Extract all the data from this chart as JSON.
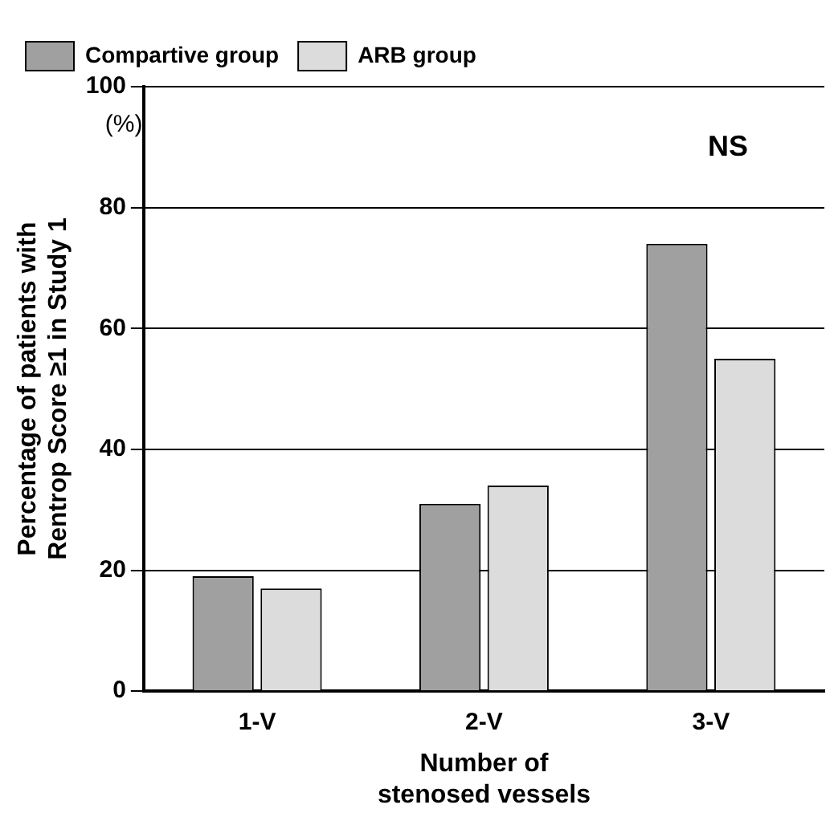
{
  "chart_data": {
    "type": "bar",
    "ylabel": "Percentage of patients with\nRentrop Score ≥1 in Study 1",
    "xlabel": "Number of\nstenosed vessels",
    "categories": [
      "1-V",
      "2-V",
      "3-V"
    ],
    "series": [
      {
        "name": "Compartive group",
        "color": "#a0a0a0",
        "values": [
          19,
          31,
          74
        ]
      },
      {
        "name": "ARB group",
        "color": "#dcdcdc",
        "values": [
          17,
          34,
          55
        ]
      }
    ],
    "ylim": [
      0,
      100
    ],
    "yticks": [
      0,
      20,
      40,
      60,
      80,
      100
    ],
    "grid": "y",
    "legend": "top left",
    "annotations": [
      "(%)",
      "NS"
    ]
  }
}
